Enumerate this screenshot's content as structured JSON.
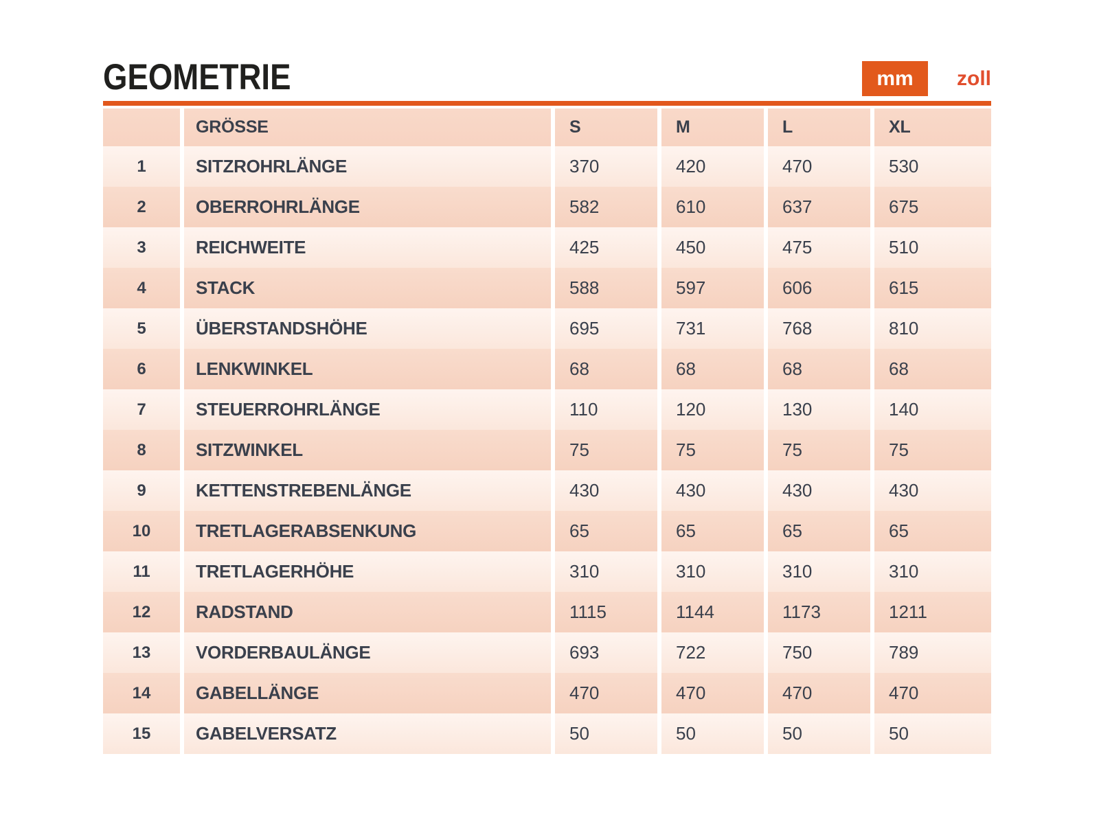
{
  "page": {
    "title": "GEOMETRIE"
  },
  "unit_toggle": {
    "active": "mm",
    "mm_label": "mm",
    "zoll_label": "zoll"
  },
  "colors": {
    "accent_orange": "#e2571c",
    "toggle_active_bg": "#e2591c",
    "toggle_inactive_text": "#e14e2d",
    "row_light": "#fdf0ea",
    "row_dark": "#f8d8c7",
    "header_bg": "#f8d6c6",
    "text_dark": "#3a404c",
    "title_color": "#20201e"
  },
  "chart_data": {
    "type": "table",
    "title": "GEOMETRIE",
    "unit_active": "mm",
    "unit_options": [
      "mm",
      "zoll"
    ],
    "row_header_label": "GRÖSSE",
    "columns": [
      "S",
      "M",
      "L",
      "XL"
    ],
    "rows": [
      {
        "num": "1",
        "label": "SITZROHRLÄNGE",
        "values": [
          "370",
          "420",
          "470",
          "530"
        ]
      },
      {
        "num": "2",
        "label": "OBERROHRLÄNGE",
        "values": [
          "582",
          "610",
          "637",
          "675"
        ]
      },
      {
        "num": "3",
        "label": "REICHWEITE",
        "values": [
          "425",
          "450",
          "475",
          "510"
        ]
      },
      {
        "num": "4",
        "label": "STACK",
        "values": [
          "588",
          "597",
          "606",
          "615"
        ]
      },
      {
        "num": "5",
        "label": "ÜBERSTANDSHÖHE",
        "values": [
          "695",
          "731",
          "768",
          "810"
        ]
      },
      {
        "num": "6",
        "label": "LENKWINKEL",
        "values": [
          "68",
          "68",
          "68",
          "68"
        ]
      },
      {
        "num": "7",
        "label": "STEUERROHRLÄNGE",
        "values": [
          "110",
          "120",
          "130",
          "140"
        ]
      },
      {
        "num": "8",
        "label": "SITZWINKEL",
        "values": [
          "75",
          "75",
          "75",
          "75"
        ]
      },
      {
        "num": "9",
        "label": "KETTENSTREBENLÄNGE",
        "values": [
          "430",
          "430",
          "430",
          "430"
        ]
      },
      {
        "num": "10",
        "label": "TRETLAGERABSENKUNG",
        "values": [
          "65",
          "65",
          "65",
          "65"
        ]
      },
      {
        "num": "11",
        "label": "TRETLAGERHÖHE",
        "values": [
          "310",
          "310",
          "310",
          "310"
        ]
      },
      {
        "num": "12",
        "label": "RADSTAND",
        "values": [
          "1115",
          "1144",
          "1173",
          "1211"
        ]
      },
      {
        "num": "13",
        "label": "VORDERBAULÄNGE",
        "values": [
          "693",
          "722",
          "750",
          "789"
        ]
      },
      {
        "num": "14",
        "label": "GABELLÄNGE",
        "values": [
          "470",
          "470",
          "470",
          "470"
        ]
      },
      {
        "num": "15",
        "label": "GABELVERSATZ",
        "values": [
          "50",
          "50",
          "50",
          "50"
        ]
      }
    ]
  }
}
